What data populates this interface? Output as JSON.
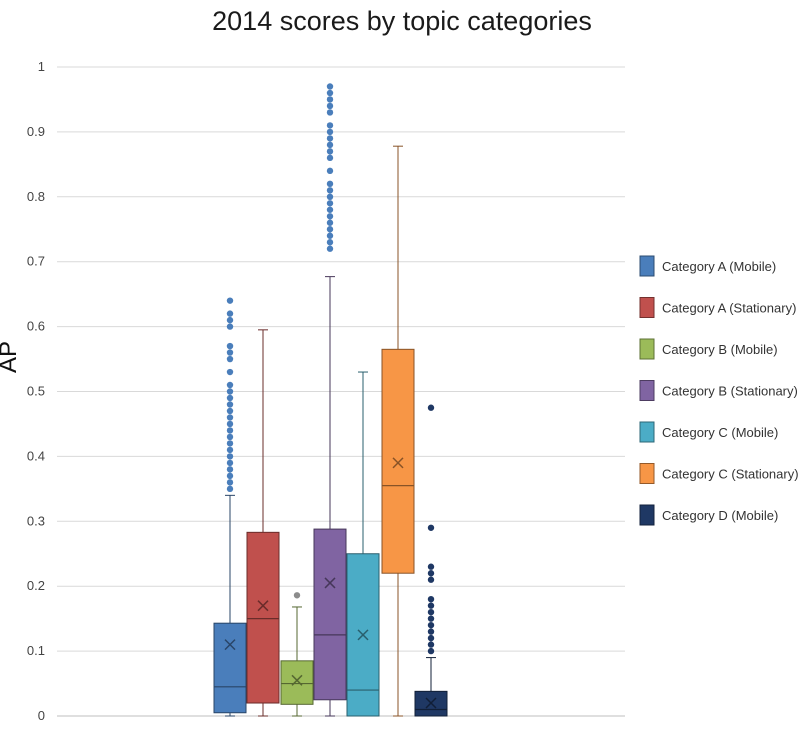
{
  "chart_data": {
    "type": "box",
    "title": "2014 scores by topic categories",
    "ylabel": "AP",
    "xlabel": "",
    "ylim": [
      0,
      1
    ],
    "yticks": [
      "0",
      "0.1",
      "0.2",
      "0.3",
      "0.4",
      "0.5",
      "0.6",
      "0.7",
      "0.8",
      "0.9",
      "1"
    ],
    "grid": true,
    "legend_position": "right",
    "series": [
      {
        "name": "Category A (Mobile)",
        "color": "#4a7ebb",
        "whisker_low": 0.0,
        "q1": 0.005,
        "median": 0.045,
        "q3": 0.143,
        "whisker_high": 0.34,
        "mean": 0.11,
        "outliers": [
          0.35,
          0.36,
          0.37,
          0.38,
          0.39,
          0.4,
          0.41,
          0.42,
          0.43,
          0.44,
          0.45,
          0.46,
          0.47,
          0.48,
          0.49,
          0.5,
          0.51,
          0.53,
          0.55,
          0.56,
          0.57,
          0.6,
          0.61,
          0.62,
          0.64
        ]
      },
      {
        "name": "Category A (Stationary)",
        "color": "#c0504d",
        "whisker_low": 0.0,
        "q1": 0.02,
        "median": 0.15,
        "q3": 0.283,
        "whisker_high": 0.595,
        "mean": 0.17,
        "outliers": []
      },
      {
        "name": "Category B (Mobile)",
        "color": "#9bbb59",
        "whisker_low": 0.0,
        "q1": 0.018,
        "median": 0.05,
        "q3": 0.085,
        "whisker_high": 0.168,
        "mean": 0.055,
        "outliers": [
          0.186
        ]
      },
      {
        "name": "Category B (Stationary)",
        "color": "#8064a2",
        "whisker_low": 0.0,
        "q1": 0.025,
        "median": 0.125,
        "q3": 0.288,
        "whisker_high": 0.677,
        "mean": 0.205,
        "outliers": [
          0.72,
          0.73,
          0.74,
          0.75,
          0.76,
          0.77,
          0.78,
          0.79,
          0.8,
          0.81,
          0.82,
          0.84,
          0.86,
          0.87,
          0.88,
          0.89,
          0.9,
          0.91,
          0.93,
          0.94,
          0.95,
          0.96,
          0.97
        ]
      },
      {
        "name": "Category C (Mobile)",
        "color": "#4bacc6",
        "whisker_low": 0.0,
        "q1": 0.0,
        "median": 0.04,
        "q3": 0.25,
        "whisker_high": 0.53,
        "mean": 0.125,
        "outliers": []
      },
      {
        "name": "Category C (Stationary)",
        "color": "#f79646",
        "whisker_low": 0.0,
        "q1": 0.22,
        "median": 0.355,
        "q3": 0.565,
        "whisker_high": 0.878,
        "mean": 0.39,
        "outliers": []
      },
      {
        "name": "Category D (Mobile)",
        "color": "#1f3864",
        "whisker_low": 0.0,
        "q1": 0.0,
        "median": 0.01,
        "q3": 0.038,
        "whisker_high": 0.09,
        "mean": 0.02,
        "outliers": [
          0.1,
          0.11,
          0.12,
          0.13,
          0.14,
          0.15,
          0.16,
          0.17,
          0.18,
          0.21,
          0.22,
          0.23,
          0.29,
          0.475
        ]
      }
    ]
  }
}
